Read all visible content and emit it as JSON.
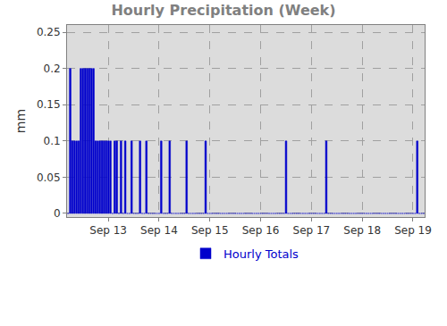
{
  "chart_data": {
    "type": "bar",
    "title": "Hourly Precipitation (Week)",
    "y_label": "mm",
    "categories": [
      null,
      null,
      null,
      null,
      null,
      null,
      null,
      null,
      null,
      null,
      null,
      null,
      null,
      null,
      null,
      null,
      null,
      null,
      null,
      "Sep 13",
      null,
      null,
      null,
      null,
      null,
      null,
      null,
      null,
      null,
      null,
      null,
      null,
      null,
      null,
      null,
      null,
      null,
      null,
      null,
      null,
      null,
      null,
      null,
      "Sep 14",
      null,
      null,
      null,
      null,
      null,
      null,
      null,
      null,
      null,
      null,
      null,
      null,
      null,
      null,
      null,
      null,
      null,
      null,
      null,
      null,
      null,
      null,
      null,
      "Sep 15",
      null,
      null,
      null,
      null,
      null,
      null,
      null,
      null,
      null,
      null,
      null,
      null,
      null,
      null,
      null,
      null,
      null,
      null,
      null,
      null,
      null,
      null,
      null,
      "Sep 16",
      null,
      null,
      null,
      null,
      null,
      null,
      null,
      null,
      null,
      null,
      null,
      null,
      null,
      null,
      null,
      null,
      null,
      null,
      null,
      null,
      null,
      null,
      null,
      "Sep 17",
      null,
      null,
      null,
      null,
      null,
      null,
      null,
      null,
      null,
      null,
      null,
      null,
      null,
      null,
      null,
      null,
      null,
      null,
      null,
      null,
      null,
      null,
      null,
      "Sep 18",
      null,
      null,
      null,
      null,
      null,
      null,
      null,
      null,
      null,
      null,
      null,
      null,
      null,
      null,
      null,
      null,
      null,
      null,
      null,
      null,
      null,
      null,
      null,
      "Sep 19",
      null,
      null,
      null,
      null,
      null
    ],
    "series": [
      {
        "name": "Hourly Totals",
        "color": "#0000cc",
        "values": [
          0,
          0.2,
          0.1,
          0.1,
          0.1,
          0.1,
          0.2,
          0.2,
          0.2,
          0.2,
          0.2,
          0.2,
          0.2,
          0.1,
          0.1,
          0.1,
          0.1,
          0.1,
          0.1,
          0.1,
          0.1,
          0,
          0.1,
          0.1,
          0,
          0.1,
          0,
          0.1,
          0,
          0,
          0.1,
          0,
          0,
          0,
          0.1,
          0,
          0,
          0.1,
          0,
          0,
          0,
          0,
          0,
          0,
          0.1,
          0,
          0,
          0,
          0.1,
          0,
          0,
          0,
          0,
          0,
          0,
          0,
          0.1,
          0,
          0,
          0,
          0,
          0,
          0,
          0,
          0,
          0.1,
          0,
          0,
          0,
          0,
          0,
          0,
          0,
          0,
          0,
          0,
          0,
          0,
          0,
          0,
          0,
          0,
          0,
          0,
          0,
          0,
          0,
          0,
          0,
          0,
          0,
          0,
          0,
          0,
          0,
          0,
          0,
          0,
          0,
          0,
          0,
          0,
          0,
          0.1,
          0,
          0,
          0,
          0,
          0,
          0,
          0,
          0,
          0,
          0,
          0,
          0,
          0,
          0,
          0,
          0,
          0,
          0,
          0.1,
          0,
          0,
          0,
          0,
          0,
          0,
          0,
          0,
          0,
          0,
          0,
          0,
          0,
          0,
          0,
          0,
          0,
          0,
          0,
          0,
          0,
          0,
          0,
          0,
          0,
          0,
          0,
          0,
          0,
          0,
          0,
          0,
          0,
          0,
          0,
          0,
          0,
          0,
          0,
          0,
          0,
          0,
          0.1,
          0,
          0,
          0
        ]
      }
    ],
    "ylim": [
      -0.005,
      0.26
    ],
    "yticks": [
      0,
      0.05,
      0.1,
      0.15,
      0.2,
      0.25
    ],
    "grid": true,
    "legend": "bottom"
  }
}
